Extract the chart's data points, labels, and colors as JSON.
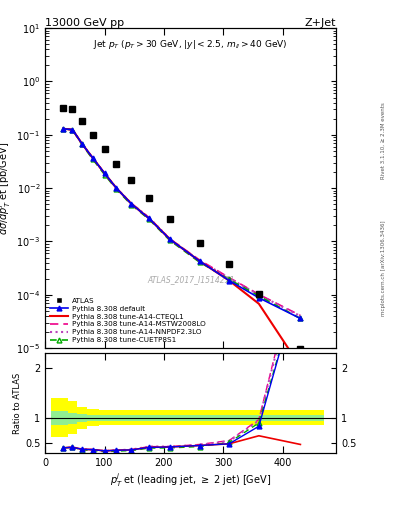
{
  "atlas_x": [
    30,
    46,
    62,
    80,
    100,
    120,
    145,
    175,
    210,
    260,
    310,
    360,
    430
  ],
  "atlas_y": [
    0.32,
    0.3,
    0.18,
    0.1,
    0.055,
    0.028,
    0.014,
    0.0065,
    0.0026,
    0.00095,
    0.00038,
    0.000105,
    9.5e-06
  ],
  "pythia_x": [
    30,
    46,
    62,
    80,
    100,
    120,
    145,
    175,
    210,
    260,
    310,
    360,
    430
  ],
  "default_y": [
    0.13,
    0.125,
    0.068,
    0.037,
    0.019,
    0.01,
    0.0051,
    0.0027,
    0.0011,
    0.00043,
    0.000185,
    8.8e-05,
    3.6e-05
  ],
  "cteql1_y": [
    0.13,
    0.125,
    0.068,
    0.037,
    0.019,
    0.01,
    0.0051,
    0.0027,
    0.0011,
    0.00043,
    0.000185,
    6.8e-05,
    4.5e-06
  ],
  "mstw_y": [
    0.13,
    0.125,
    0.068,
    0.037,
    0.019,
    0.01,
    0.0052,
    0.0028,
    0.00112,
    0.00045,
    0.00021,
    0.000102,
    4.1e-05
  ],
  "nnpdf_y": [
    0.13,
    0.125,
    0.068,
    0.037,
    0.019,
    0.01,
    0.0052,
    0.0028,
    0.00112,
    0.00044,
    0.000205,
    0.0001,
    4e-05
  ],
  "cuetp_y": [
    0.13,
    0.125,
    0.066,
    0.035,
    0.018,
    0.0095,
    0.0049,
    0.0026,
    0.00105,
    0.00041,
    0.000195,
    9.5e-05,
    3.6e-05
  ],
  "ratio_band_x": [
    25,
    46,
    62,
    80,
    100,
    120,
    145,
    175,
    210,
    260,
    310,
    360,
    430
  ],
  "ratio_band_x_edges": [
    10,
    38,
    54,
    71,
    90,
    110,
    132,
    160,
    192,
    235,
    285,
    335,
    395,
    470
  ],
  "ratio_band_yellow_lo": [
    0.62,
    0.68,
    0.78,
    0.84,
    0.86,
    0.86,
    0.87,
    0.87,
    0.87,
    0.87,
    0.87,
    0.87,
    0.87
  ],
  "ratio_band_yellow_hi": [
    1.4,
    1.35,
    1.22,
    1.18,
    1.17,
    1.17,
    1.16,
    1.16,
    1.16,
    1.16,
    1.16,
    1.16,
    1.16
  ],
  "ratio_band_green_lo": [
    0.86,
    0.89,
    0.92,
    0.94,
    0.94,
    0.94,
    0.94,
    0.94,
    0.94,
    0.94,
    0.94,
    0.94,
    0.94
  ],
  "ratio_band_green_hi": [
    1.14,
    1.11,
    1.08,
    1.06,
    1.06,
    1.06,
    1.06,
    1.06,
    1.06,
    1.06,
    1.06,
    1.06,
    1.06
  ],
  "color_default": "#0000ee",
  "color_cteql1": "#ee0000",
  "color_mstw": "#ee0088",
  "color_nnpdf": "#bb44bb",
  "color_cuetp": "#00aa00",
  "color_atlas": "#000000",
  "color_yellow": "#ffff00",
  "color_green": "#90ee90",
  "xlim": [
    0,
    490
  ],
  "ylim_main": [
    1e-05,
    10
  ],
  "ylim_ratio": [
    0.3,
    2.3
  ],
  "yticks_ratio": [
    0.5,
    1.0,
    2.0
  ],
  "watermark": "ATLAS_2017_I1514251",
  "right_side_label": "Rivet 3.1.10, ≥ 2.3M events",
  "mcplots_label": "mcplots.cern.ch [arXiv:1306.3436]"
}
